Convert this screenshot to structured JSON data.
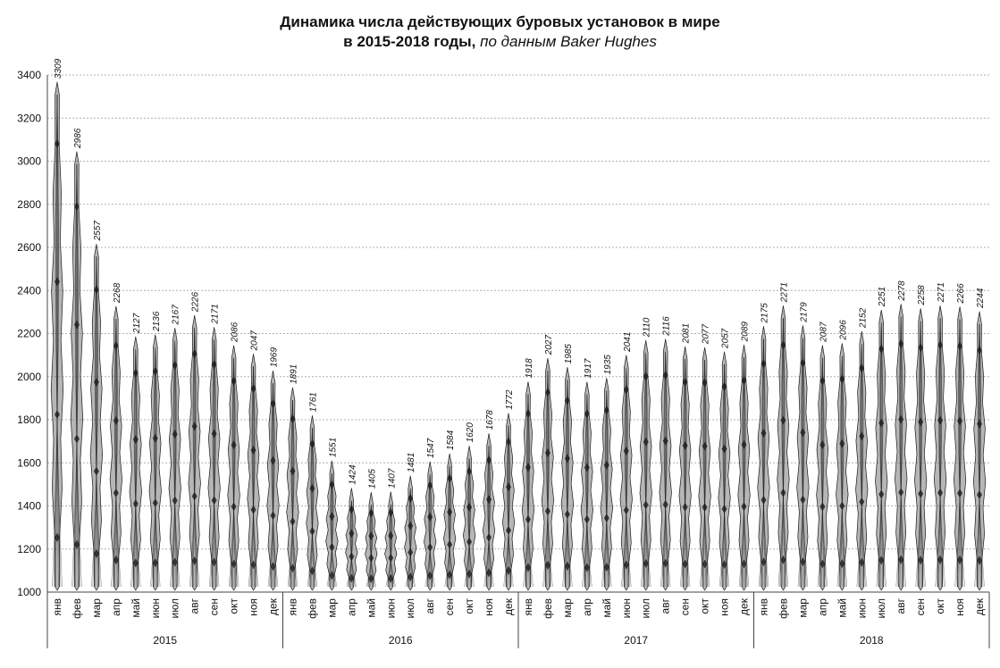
{
  "chart_data": {
    "type": "bar",
    "title_line1": "Динамика числа действующих буровых установок в мире",
    "title_line2": "в 2015-2018 годы,",
    "title_source": "по данным Baker Hughes",
    "ylim": [
      1000,
      3400
    ],
    "yticks": [
      1000,
      1200,
      1400,
      1600,
      1800,
      2000,
      2200,
      2400,
      2600,
      2800,
      3000,
      3200,
      3400
    ],
    "grid": true,
    "legend": "none",
    "month_labels": [
      "янв",
      "фев",
      "мар",
      "апр",
      "май",
      "июн",
      "июл",
      "авг",
      "сен",
      "окт",
      "ноя",
      "дек"
    ],
    "years": [
      "2015",
      "2016",
      "2017",
      "2018"
    ],
    "values": [
      3309,
      2986,
      2557,
      2268,
      2127,
      2136,
      2167,
      2226,
      2171,
      2086,
      2047,
      1969,
      1891,
      1761,
      1551,
      1424,
      1405,
      1407,
      1481,
      1547,
      1584,
      1620,
      1678,
      1772,
      1918,
      2027,
      1985,
      1917,
      1935,
      2041,
      2110,
      2116,
      2081,
      2077,
      2057,
      2089,
      2175,
      2271,
      2179,
      2087,
      2096,
      2152,
      2251,
      2278,
      2258,
      2271,
      2266,
      2244
    ],
    "colors": {
      "bar_fill": "#7a7a7a",
      "bar_dark": "#1a1a1a",
      "grid": "#b0b0b0",
      "text": "#111111"
    }
  }
}
